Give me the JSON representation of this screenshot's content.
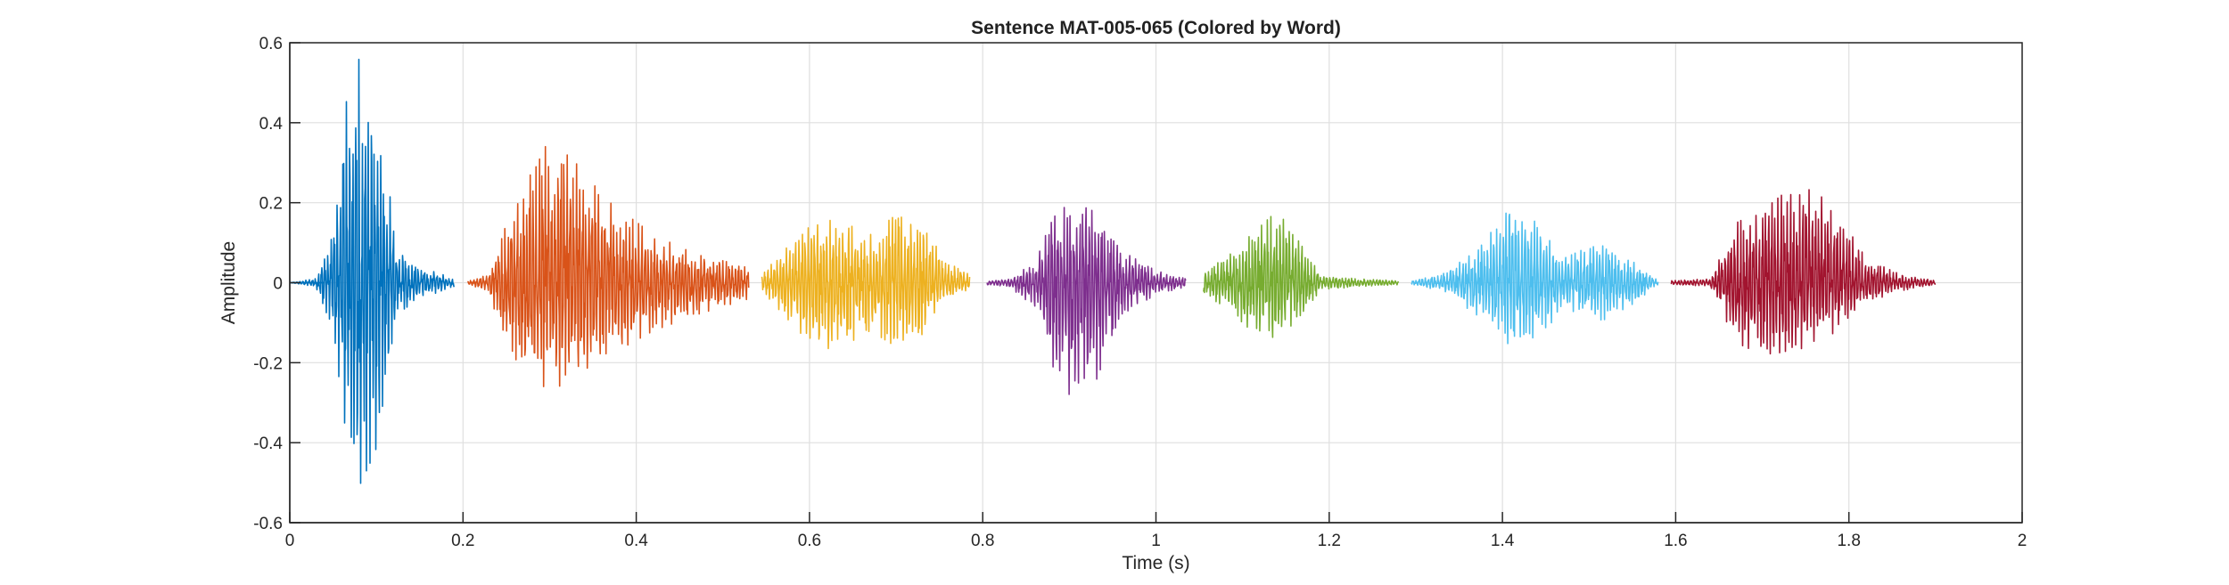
{
  "chart_data": {
    "type": "line",
    "title": "Sentence MAT-005-065 (Colored by Word)",
    "xlabel": "Time (s)",
    "ylabel": "Amplitude",
    "xlim": [
      0,
      2
    ],
    "ylim": [
      -0.6,
      0.6
    ],
    "grid": true,
    "x_ticks": [
      0,
      0.2,
      0.4,
      0.6,
      0.8,
      1.0,
      1.2,
      1.4,
      1.6,
      1.8,
      2.0
    ],
    "x_tick_labels": [
      "0",
      "0.2",
      "0.4",
      "0.6",
      "0.8",
      "1",
      "1.2",
      "1.4",
      "1.6",
      "1.8",
      "2"
    ],
    "y_ticks": [
      -0.6,
      -0.4,
      -0.2,
      0,
      0.2,
      0.4,
      0.6
    ],
    "y_tick_labels": [
      "-0.6",
      "-0.4",
      "-0.2",
      "0",
      "0.2",
      "0.4",
      "0.6"
    ],
    "series": [
      {
        "start": 0.0,
        "end": 0.19,
        "color": "#0072BD",
        "envelope_pos": [
          [
            0.0,
            0
          ],
          [
            0.03,
            0.01
          ],
          [
            0.05,
            0.12
          ],
          [
            0.065,
            0.45
          ],
          [
            0.08,
            0.56
          ],
          [
            0.095,
            0.48
          ],
          [
            0.11,
            0.3
          ],
          [
            0.125,
            0.08
          ],
          [
            0.15,
            0.04
          ],
          [
            0.19,
            0.01
          ]
        ],
        "envelope_neg": [
          [
            0.0,
            0
          ],
          [
            0.03,
            -0.01
          ],
          [
            0.05,
            -0.12
          ],
          [
            0.065,
            -0.38
          ],
          [
            0.08,
            -0.51
          ],
          [
            0.095,
            -0.44
          ],
          [
            0.11,
            -0.36
          ],
          [
            0.125,
            -0.08
          ],
          [
            0.15,
            -0.04
          ],
          [
            0.19,
            -0.01
          ]
        ]
      },
      {
        "start": 0.205,
        "end": 0.53,
        "color": "#D95319",
        "envelope_pos": [
          [
            0.205,
            0.005
          ],
          [
            0.23,
            0.02
          ],
          [
            0.25,
            0.15
          ],
          [
            0.28,
            0.28
          ],
          [
            0.3,
            0.36
          ],
          [
            0.33,
            0.3
          ],
          [
            0.37,
            0.2
          ],
          [
            0.42,
            0.12
          ],
          [
            0.47,
            0.07
          ],
          [
            0.53,
            0.04
          ]
        ],
        "envelope_neg": [
          [
            0.205,
            -0.005
          ],
          [
            0.23,
            -0.02
          ],
          [
            0.25,
            -0.18
          ],
          [
            0.28,
            -0.24
          ],
          [
            0.3,
            -0.27
          ],
          [
            0.33,
            -0.24
          ],
          [
            0.37,
            -0.18
          ],
          [
            0.42,
            -0.12
          ],
          [
            0.47,
            -0.08
          ],
          [
            0.53,
            -0.04
          ]
        ]
      },
      {
        "start": 0.545,
        "end": 0.785,
        "color": "#EDB120",
        "envelope_pos": [
          [
            0.545,
            0.02
          ],
          [
            0.57,
            0.08
          ],
          [
            0.6,
            0.14
          ],
          [
            0.63,
            0.16
          ],
          [
            0.67,
            0.12
          ],
          [
            0.7,
            0.17
          ],
          [
            0.73,
            0.14
          ],
          [
            0.76,
            0.05
          ],
          [
            0.785,
            0.02
          ]
        ],
        "envelope_neg": [
          [
            0.545,
            -0.02
          ],
          [
            0.57,
            -0.08
          ],
          [
            0.6,
            -0.15
          ],
          [
            0.63,
            -0.17
          ],
          [
            0.67,
            -0.12
          ],
          [
            0.7,
            -0.16
          ],
          [
            0.73,
            -0.13
          ],
          [
            0.76,
            -0.04
          ],
          [
            0.785,
            -0.02
          ]
        ]
      },
      {
        "start": 0.805,
        "end": 1.035,
        "color": "#7E2F8E",
        "envelope_pos": [
          [
            0.805,
            0.005
          ],
          [
            0.83,
            0.01
          ],
          [
            0.86,
            0.05
          ],
          [
            0.88,
            0.16
          ],
          [
            0.9,
            0.2
          ],
          [
            0.93,
            0.18
          ],
          [
            0.96,
            0.08
          ],
          [
            1.0,
            0.03
          ],
          [
            1.035,
            0.01
          ]
        ],
        "envelope_neg": [
          [
            0.805,
            -0.005
          ],
          [
            0.83,
            -0.01
          ],
          [
            0.86,
            -0.06
          ],
          [
            0.88,
            -0.22
          ],
          [
            0.9,
            -0.28
          ],
          [
            0.93,
            -0.25
          ],
          [
            0.96,
            -0.08
          ],
          [
            1.0,
            -0.03
          ],
          [
            1.035,
            -0.01
          ]
        ]
      },
      {
        "start": 1.055,
        "end": 1.28,
        "color": "#77AC30",
        "envelope_pos": [
          [
            1.055,
            0.03
          ],
          [
            1.08,
            0.06
          ],
          [
            1.11,
            0.12
          ],
          [
            1.14,
            0.18
          ],
          [
            1.16,
            0.12
          ],
          [
            1.19,
            0.02
          ],
          [
            1.23,
            0.01
          ],
          [
            1.28,
            0.005
          ]
        ],
        "envelope_neg": [
          [
            1.055,
            -0.03
          ],
          [
            1.08,
            -0.06
          ],
          [
            1.11,
            -0.12
          ],
          [
            1.14,
            -0.14
          ],
          [
            1.16,
            -0.1
          ],
          [
            1.19,
            -0.02
          ],
          [
            1.23,
            -0.01
          ],
          [
            1.28,
            -0.005
          ]
        ]
      },
      {
        "start": 1.295,
        "end": 1.58,
        "color": "#4DBEEE",
        "envelope_pos": [
          [
            1.295,
            0.005
          ],
          [
            1.33,
            0.02
          ],
          [
            1.37,
            0.08
          ],
          [
            1.41,
            0.19
          ],
          [
            1.44,
            0.15
          ],
          [
            1.47,
            0.06
          ],
          [
            1.51,
            0.1
          ],
          [
            1.54,
            0.07
          ],
          [
            1.58,
            0.005
          ]
        ],
        "envelope_neg": [
          [
            1.295,
            -0.005
          ],
          [
            1.33,
            -0.02
          ],
          [
            1.37,
            -0.08
          ],
          [
            1.41,
            -0.16
          ],
          [
            1.44,
            -0.15
          ],
          [
            1.47,
            -0.06
          ],
          [
            1.51,
            -0.1
          ],
          [
            1.54,
            -0.07
          ],
          [
            1.58,
            -0.005
          ]
        ]
      },
      {
        "start": 1.595,
        "end": 1.9,
        "color": "#A2142F",
        "envelope_pos": [
          [
            1.595,
            0.005
          ],
          [
            1.64,
            0.01
          ],
          [
            1.67,
            0.15
          ],
          [
            1.7,
            0.18
          ],
          [
            1.74,
            0.25
          ],
          [
            1.78,
            0.2
          ],
          [
            1.82,
            0.06
          ],
          [
            1.86,
            0.02
          ],
          [
            1.9,
            0.005
          ]
        ],
        "envelope_neg": [
          [
            1.595,
            -0.005
          ],
          [
            1.64,
            -0.01
          ],
          [
            1.67,
            -0.15
          ],
          [
            1.7,
            -0.18
          ],
          [
            1.74,
            -0.17
          ],
          [
            1.78,
            -0.13
          ],
          [
            1.82,
            -0.05
          ],
          [
            1.86,
            -0.02
          ],
          [
            1.9,
            -0.005
          ]
        ]
      }
    ]
  }
}
